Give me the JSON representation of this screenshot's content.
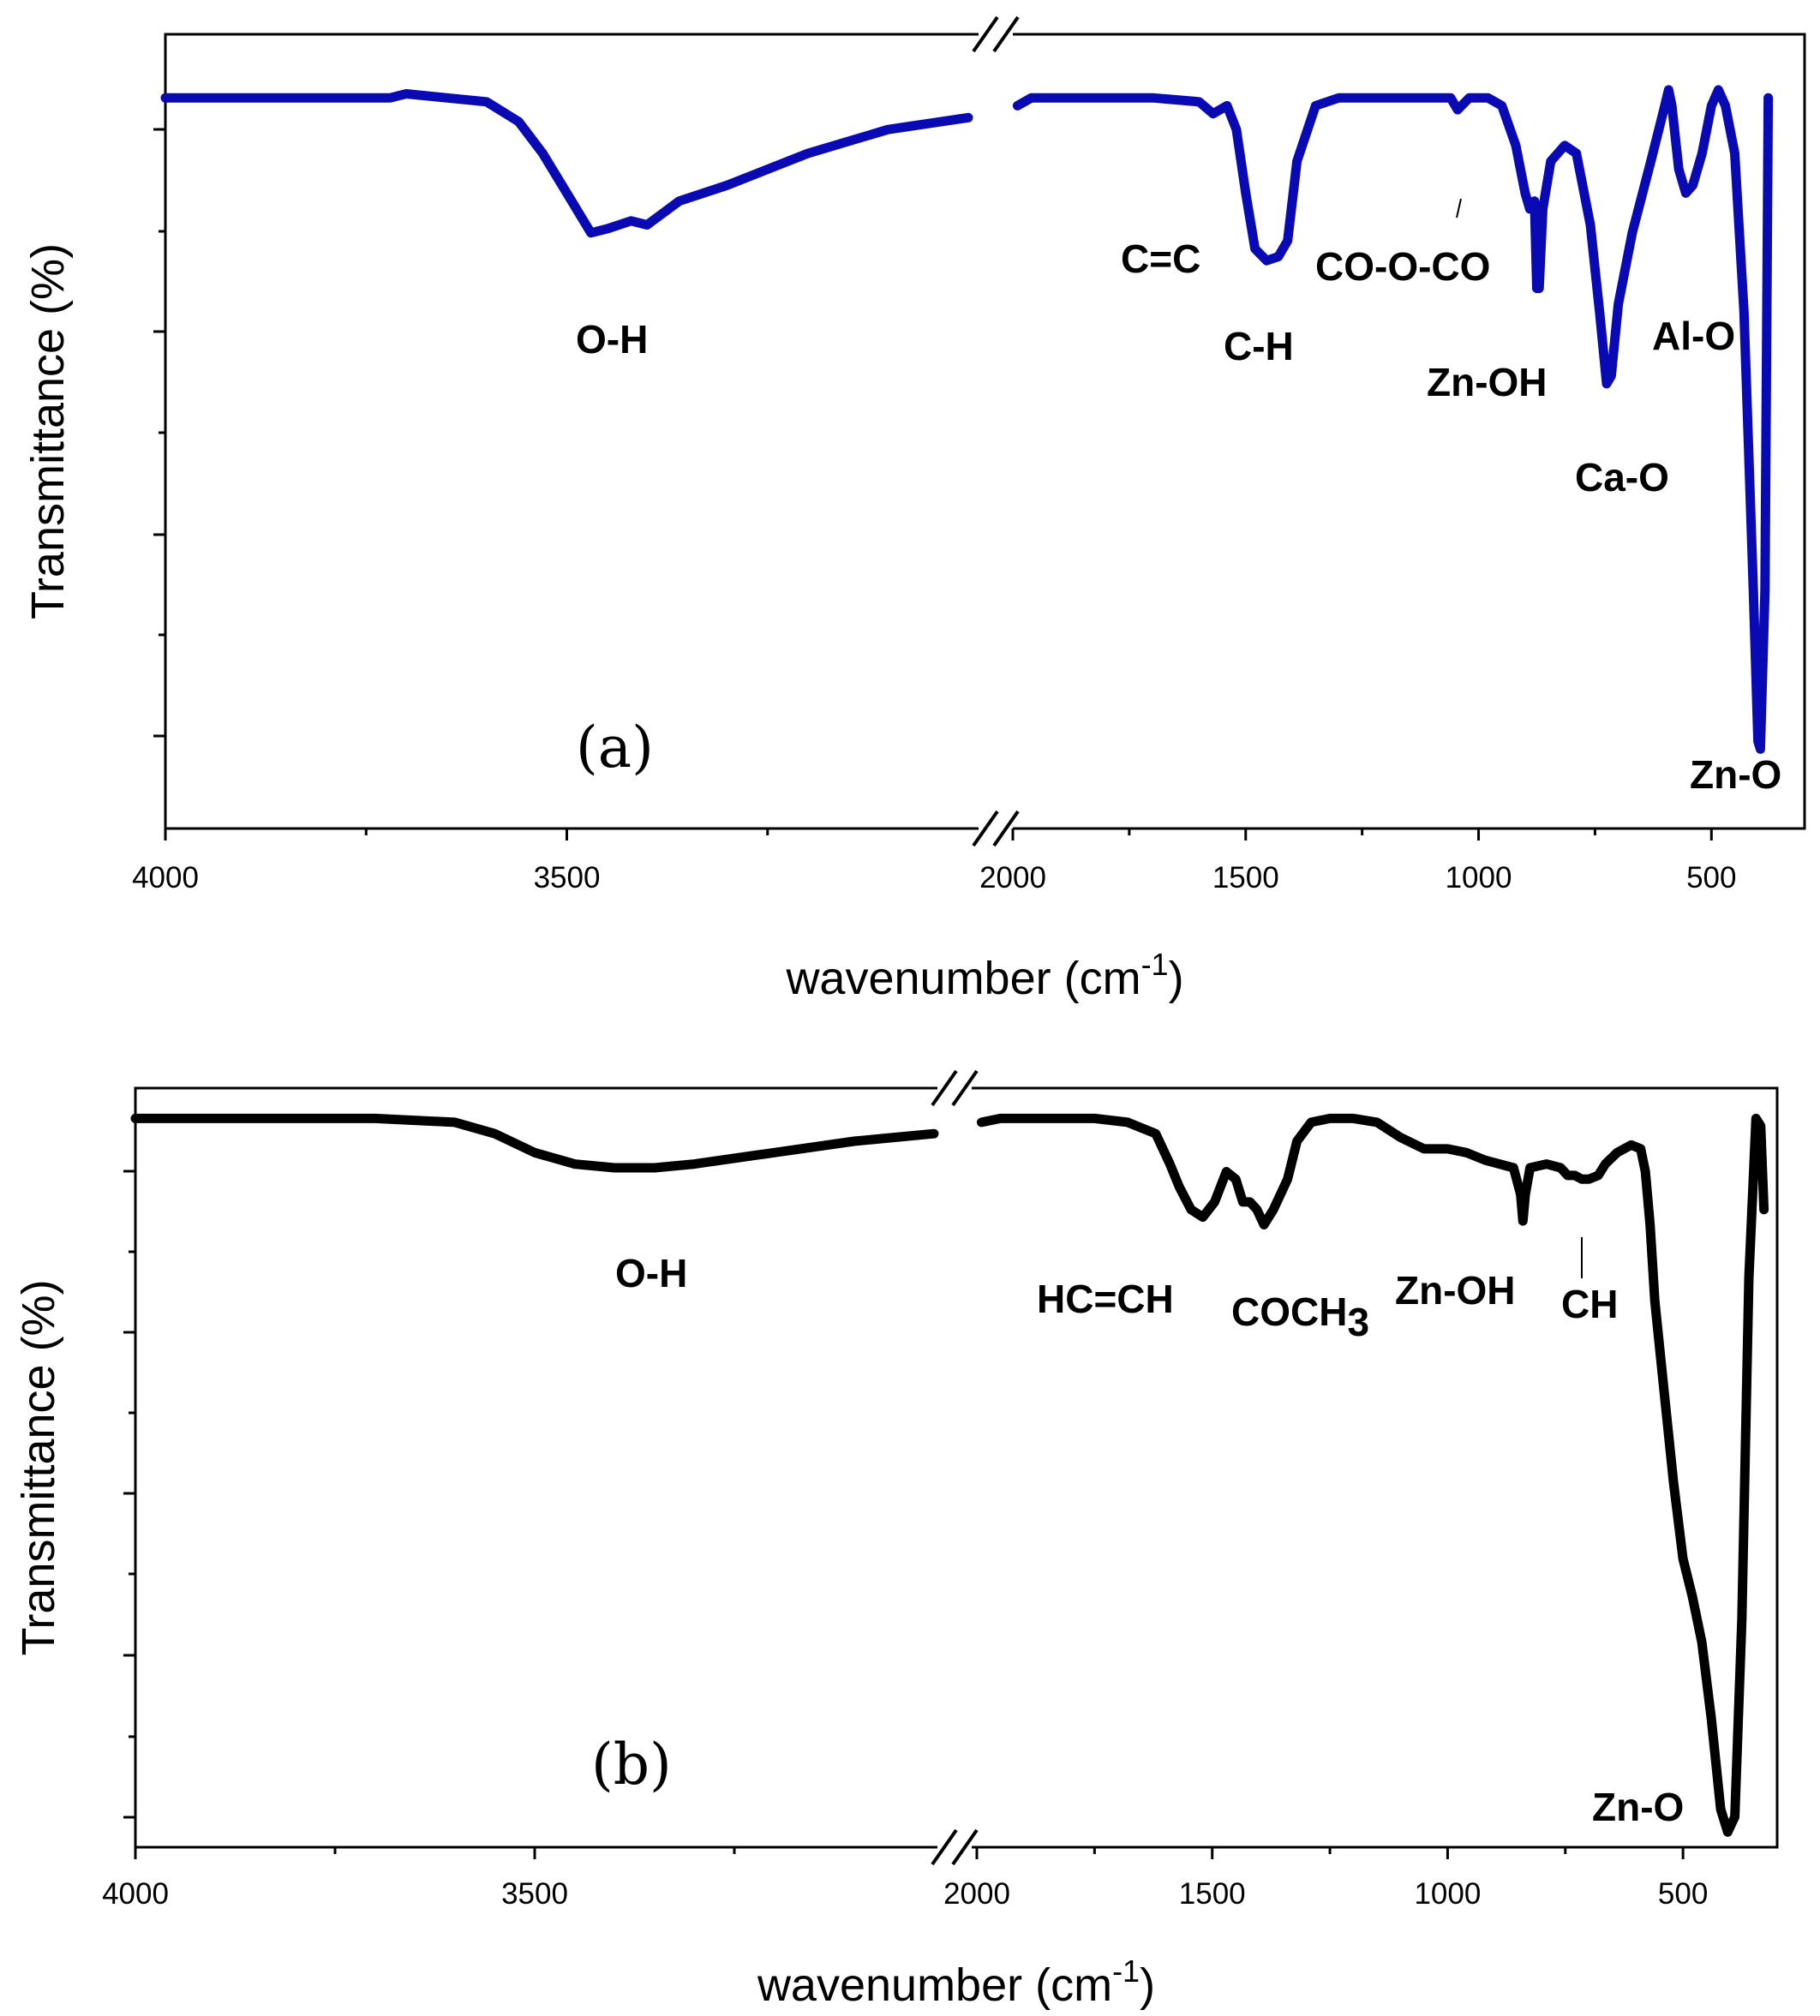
{
  "chart_data": [
    {
      "type": "line",
      "panel_label": "(a)",
      "color": "#0a0ab4",
      "ylabel": "Transmittance (%)",
      "xlabel_base": "wavenumber (cm",
      "xlabel_sup": "-1",
      "xlabel_close": ")",
      "x_tick_labels": [
        "4000",
        "3500",
        "2000",
        "1500",
        "1000",
        "500"
      ],
      "axis_break": "between 3000 and 2000 cm-1",
      "xlim_left": [
        4000,
        3000
      ],
      "xlim_right": [
        2000,
        300
      ],
      "ylim": [
        0,
        100
      ],
      "annotations": [
        {
          "label": "O-H",
          "x": 3460
        },
        {
          "label": "C=C",
          "x": 1640
        },
        {
          "label": "C-H",
          "x": 1455
        },
        {
          "label": "CO-O-CO",
          "x": 1045
        },
        {
          "label": "Zn-OH",
          "x": 870
        },
        {
          "label": "Ca-O",
          "x": 720
        },
        {
          "label": "Al-O",
          "x": 560
        },
        {
          "label": "Zn-O",
          "x": 400
        }
      ],
      "series": [
        {
          "name": "spectrum (a)",
          "points": [
            [
              4000,
              92
            ],
            [
              3900,
              92
            ],
            [
              3800,
              92
            ],
            [
              3720,
              92
            ],
            [
              3700,
              92.5
            ],
            [
              3650,
              92
            ],
            [
              3600,
              91.5
            ],
            [
              3560,
              89
            ],
            [
              3530,
              85
            ],
            [
              3500,
              80
            ],
            [
              3470,
              75
            ],
            [
              3450,
              75.5
            ],
            [
              3420,
              76.5
            ],
            [
              3400,
              76
            ],
            [
              3360,
              79
            ],
            [
              3300,
              81
            ],
            [
              3200,
              85
            ],
            [
              3100,
              88
            ],
            [
              3000,
              89.5
            ],
            [
              1990,
              91
            ],
            [
              1960,
              92
            ],
            [
              1900,
              92
            ],
            [
              1800,
              92
            ],
            [
              1700,
              92
            ],
            [
              1600,
              91.5
            ],
            [
              1570,
              90
            ],
            [
              1540,
              91
            ],
            [
              1520,
              88
            ],
            [
              1500,
              80
            ],
            [
              1480,
              73
            ],
            [
              1455,
              71.5
            ],
            [
              1430,
              72
            ],
            [
              1410,
              74
            ],
            [
              1390,
              84
            ],
            [
              1350,
              91
            ],
            [
              1300,
              92
            ],
            [
              1200,
              92
            ],
            [
              1100,
              92
            ],
            [
              1060,
              92
            ],
            [
              1045,
              90.5
            ],
            [
              1020,
              92
            ],
            [
              980,
              92
            ],
            [
              950,
              91
            ],
            [
              920,
              86
            ],
            [
              900,
              80
            ],
            [
              890,
              78
            ],
            [
              880,
              79
            ],
            [
              875,
              68
            ],
            [
              870,
              68
            ],
            [
              862,
              78
            ],
            [
              845,
              84
            ],
            [
              815,
              86
            ],
            [
              790,
              85
            ],
            [
              760,
              76
            ],
            [
              740,
              65
            ],
            [
              725,
              56
            ],
            [
              715,
              57
            ],
            [
              700,
              66
            ],
            [
              670,
              75
            ],
            [
              630,
              84
            ],
            [
              600,
              91
            ],
            [
              592,
              93
            ],
            [
              585,
              91
            ],
            [
              570,
              83
            ],
            [
              555,
              80
            ],
            [
              540,
              81
            ],
            [
              520,
              85
            ],
            [
              500,
              91
            ],
            [
              485,
              93
            ],
            [
              470,
              91
            ],
            [
              450,
              85
            ],
            [
              430,
              65
            ],
            [
              410,
              30
            ],
            [
              400,
              11
            ],
            [
              395,
              10
            ],
            [
              385,
              30
            ],
            [
              378,
              92
            ]
          ]
        }
      ]
    },
    {
      "type": "line",
      "panel_label": "(b)",
      "color": "#000000",
      "ylabel": "Transmittance (%)",
      "xlabel_base": "wavenumber (cm",
      "xlabel_sup": "-1",
      "xlabel_close": ")",
      "x_tick_labels": [
        "4000",
        "3500",
        "2000",
        "1500",
        "1000",
        "500"
      ],
      "axis_break": "between 3000 and 2000 cm-1",
      "xlim_left": [
        4000,
        3000
      ],
      "xlim_right": [
        2000,
        300
      ],
      "ylim": [
        0,
        100
      ],
      "annotations": [
        {
          "label": "O-H",
          "x": 3360
        },
        {
          "label": "HC=CH",
          "x": 1600
        },
        {
          "label": "COCH3",
          "x": 1300
        },
        {
          "label": "Zn-OH",
          "x": 1060
        },
        {
          "label": "CH",
          "x": 700
        },
        {
          "label": "Zn-O",
          "x": 420
        }
      ],
      "series": [
        {
          "name": "spectrum (b)",
          "points": [
            [
              4000,
              96
            ],
            [
              3900,
              96
            ],
            [
              3800,
              96
            ],
            [
              3700,
              96
            ],
            [
              3600,
              95.5
            ],
            [
              3550,
              94
            ],
            [
              3500,
              91.5
            ],
            [
              3450,
              90
            ],
            [
              3400,
              89.5
            ],
            [
              3350,
              89.5
            ],
            [
              3300,
              90
            ],
            [
              3200,
              91.5
            ],
            [
              3100,
              93
            ],
            [
              3000,
              94
            ],
            [
              1990,
              95.5
            ],
            [
              1950,
              96
            ],
            [
              1850,
              96
            ],
            [
              1750,
              96
            ],
            [
              1680,
              95.5
            ],
            [
              1620,
              94
            ],
            [
              1590,
              90
            ],
            [
              1570,
              87
            ],
            [
              1545,
              84
            ],
            [
              1520,
              83
            ],
            [
              1495,
              85
            ],
            [
              1470,
              89
            ],
            [
              1450,
              88
            ],
            [
              1435,
              85
            ],
            [
              1420,
              85
            ],
            [
              1405,
              84
            ],
            [
              1390,
              82
            ],
            [
              1370,
              84
            ],
            [
              1340,
              88
            ],
            [
              1320,
              93
            ],
            [
              1290,
              95.5
            ],
            [
              1250,
              96
            ],
            [
              1200,
              96
            ],
            [
              1150,
              95.5
            ],
            [
              1100,
              93.5
            ],
            [
              1050,
              92
            ],
            [
              1000,
              92
            ],
            [
              960,
              91.5
            ],
            [
              920,
              90.5
            ],
            [
              890,
              90
            ],
            [
              860,
              89.5
            ],
            [
              845,
              86
            ],
            [
              840,
              82.5
            ],
            [
              835,
              86
            ],
            [
              825,
              89.5
            ],
            [
              790,
              90
            ],
            [
              760,
              89.5
            ],
            [
              745,
              88.5
            ],
            [
              730,
              88.5
            ],
            [
              715,
              88
            ],
            [
              700,
              88
            ],
            [
              680,
              88.5
            ],
            [
              665,
              90
            ],
            [
              640,
              91.5
            ],
            [
              610,
              92.5
            ],
            [
              590,
              92
            ],
            [
              580,
              89
            ],
            [
              570,
              82
            ],
            [
              560,
              72
            ],
            [
              540,
              60
            ],
            [
              520,
              48
            ],
            [
              500,
              38
            ],
            [
              480,
              33
            ],
            [
              460,
              27
            ],
            [
              440,
              17
            ],
            [
              420,
              5
            ],
            [
              405,
              2
            ],
            [
              390,
              4
            ],
            [
              375,
              30
            ],
            [
              360,
              75
            ],
            [
              345,
              96
            ],
            [
              335,
              95
            ],
            [
              328,
              84
            ]
          ]
        }
      ]
    }
  ]
}
